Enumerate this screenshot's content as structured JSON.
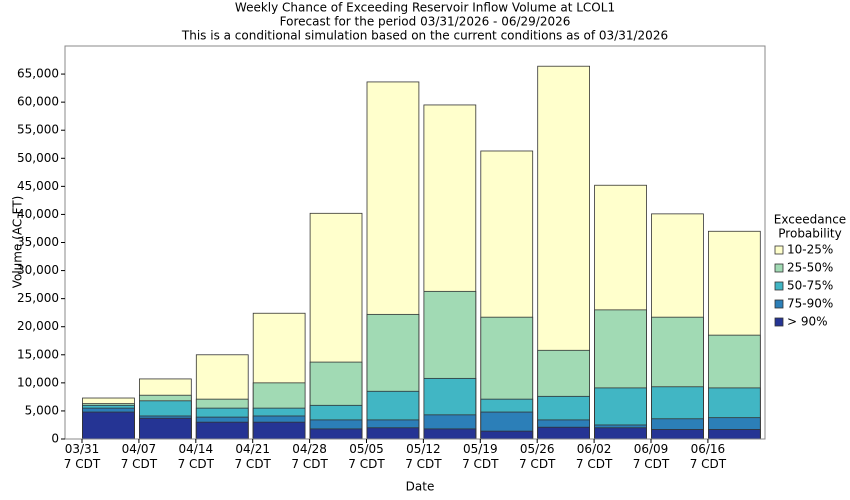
{
  "chart_data": {
    "type": "bar",
    "title": [
      "Weekly Chance of Exceeding Reservoir Inflow Volume at LCOL1",
      "Forecast for the period 03/31/2026 - 06/29/2026",
      "This is a conditional simulation based on the current conditions as of 03/31/2026"
    ],
    "x_label": "Date",
    "y_label": "Volume (AC-FT)",
    "legend_title": [
      "Exceedance",
      "Probability"
    ],
    "legend_position": "right",
    "categories": [
      "03/31\n7 CDT",
      "04/07\n7 CDT",
      "04/14\n7 CDT",
      "04/21\n7 CDT",
      "04/28\n7 CDT",
      "05/05\n7 CDT",
      "05/12\n7 CDT",
      "05/19\n7 CDT",
      "05/26\n7 CDT",
      "06/02\n7 CDT",
      "06/09\n7 CDT",
      "06/16\n7 CDT"
    ],
    "series": [
      {
        "name": "10-25%",
        "color": "#ffffcc",
        "values": [
          7300,
          10700,
          15000,
          22400,
          40200,
          63600,
          59500,
          51300,
          66400,
          45200,
          40100,
          37000
        ]
      },
      {
        "name": "25-50%",
        "color": "#a1dab4",
        "values": [
          6300,
          7800,
          7100,
          10000,
          13700,
          22200,
          26300,
          21700,
          15800,
          23000,
          21700,
          18500
        ]
      },
      {
        "name": "50-75%",
        "color": "#41b6c4",
        "values": [
          6000,
          6800,
          5500,
          5500,
          6000,
          8500,
          10800,
          7100,
          7600,
          9100,
          9300,
          9100
        ]
      },
      {
        "name": "75-90%",
        "color": "#2c7fb8",
        "values": [
          5500,
          4100,
          3900,
          4100,
          3400,
          3400,
          4300,
          4800,
          3400,
          2500,
          3600,
          3800
        ]
      },
      {
        "name": "> 90%",
        "color": "#253494",
        "values": [
          4800,
          3700,
          3000,
          3000,
          1800,
          2000,
          1800,
          1400,
          2100,
          2000,
          1700,
          1700
        ]
      }
    ],
    "ylim": [
      0,
      70000
    ],
    "yticks": [
      0,
      {
        "value": 5000,
        "label": "5,000"
      },
      {
        "value": 10000,
        "label": "10,000"
      },
      {
        "value": 15000,
        "label": "15,000"
      },
      {
        "value": 20000,
        "label": "20,000"
      },
      {
        "value": 25000,
        "label": "25,000"
      },
      {
        "value": 30000,
        "label": "30,000"
      },
      {
        "value": 35000,
        "label": "35,000"
      },
      {
        "value": 40000,
        "label": "40,000"
      },
      {
        "value": 45000,
        "label": "45,000"
      },
      {
        "value": 50000,
        "label": "50,000"
      },
      {
        "value": 55000,
        "label": "55,000"
      },
      {
        "value": 60000,
        "label": "60,000"
      },
      {
        "value": 65000,
        "label": "65,000"
      }
    ],
    "grid": false
  }
}
